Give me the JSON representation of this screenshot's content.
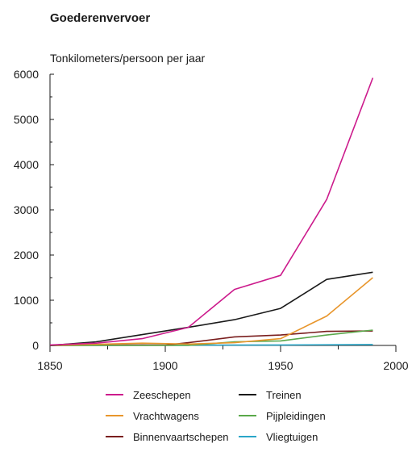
{
  "chart_data": {
    "type": "line",
    "title": "Goederenvervoer",
    "ylabel": "Tonkilometers/persoon per jaar",
    "xlabel": "",
    "xlim": [
      1850,
      2000
    ],
    "ylim": [
      0,
      6000
    ],
    "xticks": [
      1850,
      1900,
      1950,
      2000
    ],
    "yticks": [
      0,
      1000,
      2000,
      3000,
      4000,
      5000,
      6000
    ],
    "grid": false,
    "legend_position": "bottom",
    "series": [
      {
        "name": "Zeeschepen",
        "color": "#cc1b8c",
        "x": [
          1850,
          1870,
          1890,
          1910,
          1930,
          1950,
          1970,
          1990
        ],
        "y": [
          10,
          50,
          150,
          400,
          1240,
          1550,
          3230,
          5920
        ]
      },
      {
        "name": "Treinen",
        "color": "#1a1a1a",
        "x": [
          1850,
          1870,
          1890,
          1910,
          1930,
          1950,
          1970,
          1990
        ],
        "y": [
          0,
          80,
          240,
          400,
          570,
          820,
          1460,
          1620
        ]
      },
      {
        "name": "Vrachtwagens",
        "color": "#e8962c",
        "x": [
          1850,
          1890,
          1910,
          1930,
          1950,
          1970,
          1990
        ],
        "y": [
          0,
          50,
          30,
          60,
          150,
          650,
          1500
        ]
      },
      {
        "name": "Pijpleidingen",
        "color": "#5aa84a",
        "x": [
          1850,
          1910,
          1930,
          1950,
          1970,
          1990
        ],
        "y": [
          0,
          0,
          80,
          100,
          230,
          340
        ]
      },
      {
        "name": "Binnenvaartschepen",
        "color": "#7a1e1e",
        "x": [
          1850,
          1890,
          1900,
          1910,
          1930,
          1950,
          1970,
          1990
        ],
        "y": [
          0,
          10,
          5,
          60,
          190,
          230,
          310,
          320
        ]
      },
      {
        "name": "Vliegtuigen",
        "color": "#2aa6c8",
        "x": [
          1850,
          1950,
          1990
        ],
        "y": [
          0,
          10,
          20
        ]
      }
    ]
  }
}
